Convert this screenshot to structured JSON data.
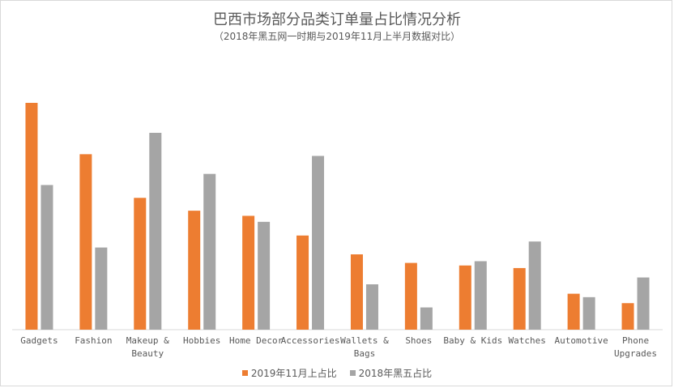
{
  "chart_data": {
    "type": "bar",
    "title": "巴西市场部分品类订单量占比情况分析",
    "subtitle": "（2018年黑五网一时期与2019年11月上半月数据对比）",
    "categories": [
      [
        "Gadgets"
      ],
      [
        "Fashion"
      ],
      [
        "Makeup &",
        "Beauty"
      ],
      [
        "Hobbies"
      ],
      [
        "Home Decor"
      ],
      [
        "Accessories"
      ],
      [
        "Wallets &",
        "Bags"
      ],
      [
        "Shoes"
      ],
      [
        "Baby & Kids"
      ],
      [
        "Watches"
      ],
      [
        "Automotive"
      ],
      [
        "Phone",
        "Upgrades"
      ]
    ],
    "series": [
      {
        "name": "2019年11月上占比",
        "color": "#ed7d31",
        "values": [
          26.5,
          20.5,
          15.4,
          13.9,
          13.3,
          11.0,
          8.8,
          7.8,
          7.5,
          7.2,
          4.2,
          3.1
        ]
      },
      {
        "name": "2018年黑五占比",
        "color": "#a5a5a5",
        "values": [
          16.9,
          9.6,
          23.0,
          18.2,
          12.6,
          20.3,
          5.3,
          2.6,
          8.0,
          10.3,
          3.8,
          6.1
        ]
      }
    ],
    "ylim": [
      0,
      30
    ],
    "grid": false,
    "legend": "bottom"
  }
}
